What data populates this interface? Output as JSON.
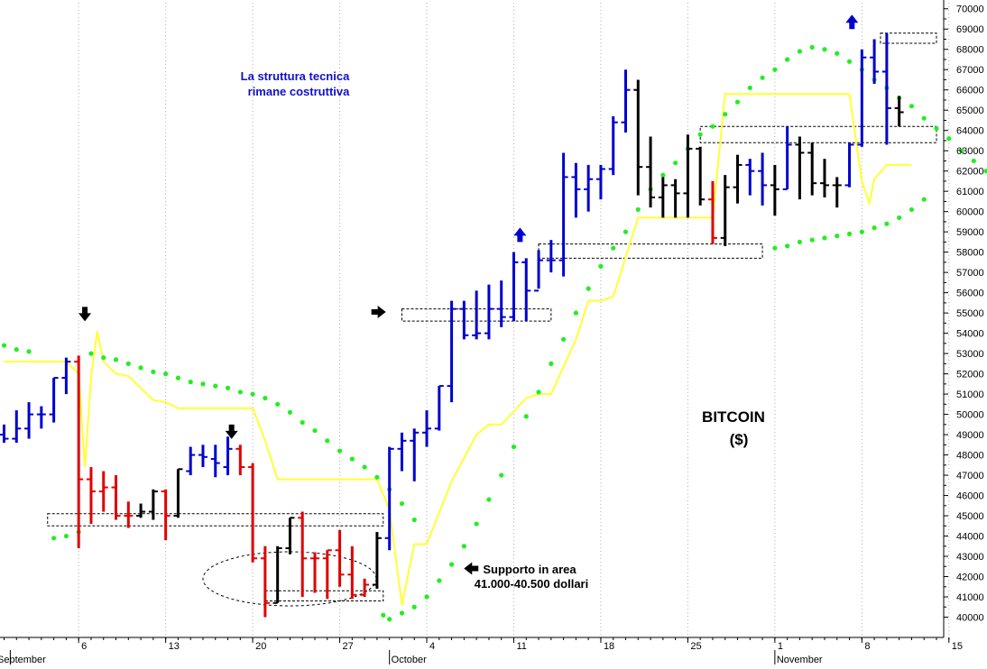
{
  "chart_data": {
    "type": "ohlc",
    "title_line1": "BITCOIN",
    "title_line2": "($)",
    "annotations": {
      "structure": [
        "La struttura tecnica",
        "rimane costruttiva"
      ],
      "support": [
        "Supporto in area",
        "41.000-40.500 dollari"
      ]
    },
    "ylim": [
      39000,
      70300
    ],
    "y_ticks": [
      40000,
      41000,
      42000,
      43000,
      44000,
      45000,
      46000,
      47000,
      48000,
      49000,
      50000,
      51000,
      52000,
      53000,
      54000,
      55000,
      56000,
      57000,
      58000,
      59000,
      60000,
      61000,
      62000,
      63000,
      64000,
      65000,
      66000,
      67000,
      68000,
      69000,
      70000
    ],
    "y_tick_labels": [
      "40000",
      "41000",
      "42000",
      "43000",
      "44000",
      "45000",
      "46000",
      "47000",
      "48000",
      "49000",
      "50000",
      "51000",
      "52000",
      "53000",
      "54000",
      "55000",
      "56000",
      "57000",
      "58000",
      "59000",
      "60000",
      "61000",
      "62000",
      "63000",
      "64000",
      "65000",
      "66000",
      "67000",
      "68000",
      "69000",
      "70000"
    ],
    "x_ticks": [
      {
        "label": "6",
        "day": 6
      },
      {
        "label": "13",
        "day": 13
      },
      {
        "label": "20",
        "day": 20
      },
      {
        "label": "27",
        "day": 27
      },
      {
        "label": "4",
        "day": 34
      },
      {
        "label": "11",
        "day": 41
      },
      {
        "label": "18",
        "day": 48
      },
      {
        "label": "25",
        "day": 55
      },
      {
        "label": "1",
        "day": 62
      },
      {
        "label": "8",
        "day": 69
      },
      {
        "label": "15",
        "day": 76
      }
    ],
    "month_labels": [
      {
        "label": "September",
        "day": 0.5
      },
      {
        "label": "October",
        "day": 31
      },
      {
        "label": "November",
        "day": 62
      }
    ],
    "colors": {
      "up": "#0000d0",
      "down": "#e00000",
      "neutral": "#000000",
      "stop_line": "#ffff33",
      "sar": "#22ee22"
    },
    "bars": [
      {
        "d": 0,
        "o": 49000,
        "h": 49500,
        "l": 48600,
        "c": 48800,
        "k": "up"
      },
      {
        "d": 1,
        "o": 48800,
        "h": 50200,
        "l": 48600,
        "c": 49300,
        "k": "up"
      },
      {
        "d": 2,
        "o": 49300,
        "h": 50600,
        "l": 48800,
        "c": 50000,
        "k": "up"
      },
      {
        "d": 3,
        "o": 50000,
        "h": 50400,
        "l": 49300,
        "c": 50000,
        "k": "up"
      },
      {
        "d": 4,
        "o": 50000,
        "h": 51800,
        "l": 49600,
        "c": 51800,
        "k": "up"
      },
      {
        "d": 5,
        "o": 51800,
        "h": 52800,
        "l": 51000,
        "c": 52600,
        "k": "up"
      },
      {
        "d": 6,
        "o": 52600,
        "h": 52900,
        "l": 43400,
        "c": 46800,
        "k": "down"
      },
      {
        "d": 7,
        "o": 46800,
        "h": 47400,
        "l": 44600,
        "c": 46200,
        "k": "down"
      },
      {
        "d": 8,
        "o": 46200,
        "h": 47200,
        "l": 45200,
        "c": 46400,
        "k": "down"
      },
      {
        "d": 9,
        "o": 46400,
        "h": 47000,
        "l": 44800,
        "c": 45000,
        "k": "down"
      },
      {
        "d": 10,
        "o": 45000,
        "h": 45700,
        "l": 44400,
        "c": 45000,
        "k": "down"
      },
      {
        "d": 11,
        "o": 45000,
        "h": 45600,
        "l": 44900,
        "c": 45200,
        "k": "neutral"
      },
      {
        "d": 12,
        "o": 45200,
        "h": 46300,
        "l": 44800,
        "c": 46200,
        "k": "neutral"
      },
      {
        "d": 13,
        "o": 46200,
        "h": 46300,
        "l": 43800,
        "c": 45000,
        "k": "down"
      },
      {
        "d": 14,
        "o": 45000,
        "h": 47300,
        "l": 44900,
        "c": 47300,
        "k": "neutral"
      },
      {
        "d": 15,
        "o": 47200,
        "h": 48400,
        "l": 47000,
        "c": 48000,
        "k": "up"
      },
      {
        "d": 16,
        "o": 48000,
        "h": 48500,
        "l": 47400,
        "c": 47900,
        "k": "up"
      },
      {
        "d": 17,
        "o": 47800,
        "h": 48500,
        "l": 46900,
        "c": 47600,
        "k": "up"
      },
      {
        "d": 18,
        "o": 47400,
        "h": 48900,
        "l": 47000,
        "c": 48300,
        "k": "up"
      },
      {
        "d": 19,
        "o": 48300,
        "h": 48500,
        "l": 47000,
        "c": 47400,
        "k": "down"
      },
      {
        "d": 20,
        "o": 47400,
        "h": 47600,
        "l": 42700,
        "c": 42900,
        "k": "down"
      },
      {
        "d": 21,
        "o": 42900,
        "h": 43500,
        "l": 40000,
        "c": 40700,
        "k": "down"
      },
      {
        "d": 22,
        "o": 40700,
        "h": 43500,
        "l": 40700,
        "c": 43400,
        "k": "neutral"
      },
      {
        "d": 23,
        "o": 43400,
        "h": 44900,
        "l": 43100,
        "c": 44900,
        "k": "neutral"
      },
      {
        "d": 24,
        "o": 44900,
        "h": 45200,
        "l": 41000,
        "c": 42900,
        "k": "down"
      },
      {
        "d": 25,
        "o": 42900,
        "h": 43200,
        "l": 41200,
        "c": 42900,
        "k": "down"
      },
      {
        "d": 26,
        "o": 42900,
        "h": 43300,
        "l": 40900,
        "c": 43300,
        "k": "down"
      },
      {
        "d": 27,
        "o": 43300,
        "h": 44300,
        "l": 41500,
        "c": 42100,
        "k": "down"
      },
      {
        "d": 28,
        "o": 42100,
        "h": 43500,
        "l": 40900,
        "c": 41100,
        "k": "down"
      },
      {
        "d": 29,
        "o": 41100,
        "h": 41900,
        "l": 41000,
        "c": 41600,
        "k": "down"
      },
      {
        "d": 30,
        "o": 41600,
        "h": 44200,
        "l": 41400,
        "c": 43900,
        "k": "neutral"
      },
      {
        "d": 31,
        "o": 43900,
        "h": 48400,
        "l": 43300,
        "c": 48300,
        "k": "up"
      },
      {
        "d": 32,
        "o": 48300,
        "h": 49100,
        "l": 47200,
        "c": 48700,
        "k": "up"
      },
      {
        "d": 33,
        "o": 48700,
        "h": 49300,
        "l": 46700,
        "c": 49100,
        "k": "up"
      },
      {
        "d": 34,
        "o": 49100,
        "h": 50200,
        "l": 48400,
        "c": 49300,
        "k": "up"
      },
      {
        "d": 35,
        "o": 49300,
        "h": 51400,
        "l": 49200,
        "c": 51400,
        "k": "up"
      },
      {
        "d": 36,
        "o": 51400,
        "h": 55600,
        "l": 50600,
        "c": 55200,
        "k": "up"
      },
      {
        "d": 37,
        "o": 55200,
        "h": 55600,
        "l": 53700,
        "c": 53900,
        "k": "up"
      },
      {
        "d": 38,
        "o": 53900,
        "h": 56100,
        "l": 53700,
        "c": 54000,
        "k": "up"
      },
      {
        "d": 39,
        "o": 54000,
        "h": 56400,
        "l": 53700,
        "c": 55200,
        "k": "up"
      },
      {
        "d": 40,
        "o": 55200,
        "h": 56600,
        "l": 54300,
        "c": 54800,
        "k": "up"
      },
      {
        "d": 41,
        "o": 54800,
        "h": 58000,
        "l": 54600,
        "c": 57500,
        "k": "up"
      },
      {
        "d": 42,
        "o": 57500,
        "h": 57700,
        "l": 54600,
        "c": 56100,
        "k": "up"
      },
      {
        "d": 43,
        "o": 56100,
        "h": 58100,
        "l": 56200,
        "c": 57600,
        "k": "up"
      },
      {
        "d": 44,
        "o": 57600,
        "h": 58600,
        "l": 57000,
        "c": 57600,
        "k": "up"
      },
      {
        "d": 45,
        "o": 57600,
        "h": 62900,
        "l": 56800,
        "c": 61700,
        "k": "up"
      },
      {
        "d": 46,
        "o": 61700,
        "h": 62400,
        "l": 59700,
        "c": 61100,
        "k": "up"
      },
      {
        "d": 47,
        "o": 61100,
        "h": 62300,
        "l": 60000,
        "c": 61600,
        "k": "up"
      },
      {
        "d": 48,
        "o": 61600,
        "h": 62300,
        "l": 60600,
        "c": 62100,
        "k": "up"
      },
      {
        "d": 49,
        "o": 62100,
        "h": 64700,
        "l": 61800,
        "c": 64400,
        "k": "up"
      },
      {
        "d": 50,
        "o": 64400,
        "h": 67000,
        "l": 63900,
        "c": 66000,
        "k": "up"
      },
      {
        "d": 51,
        "o": 66000,
        "h": 66500,
        "l": 60800,
        "c": 62200,
        "k": "neutral"
      },
      {
        "d": 52,
        "o": 62200,
        "h": 63700,
        "l": 60200,
        "c": 60700,
        "k": "neutral"
      },
      {
        "d": 53,
        "o": 60700,
        "h": 61700,
        "l": 59700,
        "c": 61300,
        "k": "neutral"
      },
      {
        "d": 54,
        "o": 61300,
        "h": 61600,
        "l": 59700,
        "c": 60900,
        "k": "neutral"
      },
      {
        "d": 55,
        "o": 60900,
        "h": 63800,
        "l": 59700,
        "c": 63100,
        "k": "neutral"
      },
      {
        "d": 56,
        "o": 63100,
        "h": 63200,
        "l": 60300,
        "c": 60600,
        "k": "neutral"
      },
      {
        "d": 57,
        "o": 60600,
        "h": 61500,
        "l": 58400,
        "c": 58700,
        "k": "down"
      },
      {
        "d": 58,
        "o": 58700,
        "h": 61800,
        "l": 58300,
        "c": 61200,
        "k": "neutral"
      },
      {
        "d": 59,
        "o": 61200,
        "h": 62800,
        "l": 60400,
        "c": 62300,
        "k": "neutral"
      },
      {
        "d": 60,
        "o": 62300,
        "h": 62600,
        "l": 60800,
        "c": 62000,
        "k": "up"
      },
      {
        "d": 61,
        "o": 62000,
        "h": 62900,
        "l": 60300,
        "c": 61300,
        "k": "up"
      },
      {
        "d": 62,
        "o": 61300,
        "h": 62300,
        "l": 59800,
        "c": 61100,
        "k": "neutral"
      },
      {
        "d": 63,
        "o": 61100,
        "h": 64200,
        "l": 61100,
        "c": 63300,
        "k": "up"
      },
      {
        "d": 64,
        "o": 63300,
        "h": 63700,
        "l": 60600,
        "c": 62900,
        "k": "neutral"
      },
      {
        "d": 65,
        "o": 62900,
        "h": 63400,
        "l": 60800,
        "c": 61400,
        "k": "neutral"
      },
      {
        "d": 66,
        "o": 61400,
        "h": 62600,
        "l": 60700,
        "c": 61300,
        "k": "neutral"
      },
      {
        "d": 67,
        "o": 61300,
        "h": 61700,
        "l": 60200,
        "c": 61300,
        "k": "neutral"
      },
      {
        "d": 68,
        "o": 61300,
        "h": 63400,
        "l": 61200,
        "c": 63300,
        "k": "up"
      },
      {
        "d": 69,
        "o": 63300,
        "h": 68000,
        "l": 63200,
        "c": 67600,
        "k": "up"
      },
      {
        "d": 70,
        "o": 67600,
        "h": 68500,
        "l": 66300,
        "c": 66900,
        "k": "up"
      },
      {
        "d": 71,
        "o": 66900,
        "h": 68800,
        "l": 63300,
        "c": 65100,
        "k": "up"
      },
      {
        "d": 72,
        "o": 65100,
        "h": 65700,
        "l": 64200,
        "c": 64900,
        "k": "neutral"
      }
    ],
    "stop_line": [
      [
        0,
        52600
      ],
      [
        5,
        52600
      ],
      [
        6,
        52000
      ],
      [
        6.5,
        47400
      ],
      [
        7,
        51900
      ],
      [
        7.5,
        54100
      ],
      [
        8,
        52600
      ],
      [
        9,
        52000
      ],
      [
        10,
        51900
      ],
      [
        12,
        50700
      ],
      [
        13,
        50600
      ],
      [
        14,
        50300
      ],
      [
        20,
        50300
      ],
      [
        21,
        48700
      ],
      [
        22,
        46800
      ],
      [
        30,
        46800
      ],
      [
        31,
        45300
      ],
      [
        32,
        40600
      ],
      [
        33,
        43600
      ],
      [
        34,
        43600
      ],
      [
        36,
        46700
      ],
      [
        38,
        49000
      ],
      [
        39,
        49500
      ],
      [
        40,
        49500
      ],
      [
        42,
        50800
      ],
      [
        43,
        51000
      ],
      [
        44,
        51000
      ],
      [
        46,
        53700
      ],
      [
        47,
        55600
      ],
      [
        48,
        55600
      ],
      [
        49,
        55800
      ],
      [
        51,
        59700
      ],
      [
        56,
        59700
      ],
      [
        57,
        59700
      ],
      [
        58,
        65800
      ],
      [
        68,
        65800
      ],
      [
        69,
        61500
      ],
      [
        69.6,
        60400
      ],
      [
        70,
        61600
      ],
      [
        71,
        62300
      ],
      [
        73,
        62300
      ]
    ],
    "sar": [
      [
        0,
        53400
      ],
      [
        1,
        53200
      ],
      [
        2,
        53100
      ],
      [
        7,
        53000
      ],
      [
        8,
        52800
      ],
      [
        9,
        52700
      ],
      [
        10,
        52500
      ],
      [
        11,
        52300
      ],
      [
        12,
        52100
      ],
      [
        13,
        52000
      ],
      [
        14,
        51800
      ],
      [
        15,
        51600
      ],
      [
        16,
        51500
      ],
      [
        17,
        51400
      ],
      [
        18,
        51300
      ],
      [
        19,
        51100
      ],
      [
        20,
        51000
      ],
      [
        21,
        50800
      ],
      [
        22,
        50500
      ],
      [
        23,
        50100
      ],
      [
        24,
        49600
      ],
      [
        25,
        49200
      ],
      [
        26,
        48700
      ],
      [
        27,
        48200
      ],
      [
        28,
        47800
      ],
      [
        29,
        47400
      ],
      [
        30,
        46900
      ],
      [
        31,
        46300
      ],
      [
        32,
        45600
      ],
      [
        33,
        44800
      ],
      [
        6,
        44200
      ],
      [
        5,
        44000
      ],
      [
        4,
        43900
      ],
      [
        30.5,
        40100
      ],
      [
        31,
        39900
      ],
      [
        32,
        40200
      ],
      [
        33,
        40500
      ],
      [
        34,
        41000
      ],
      [
        35,
        41800
      ],
      [
        36,
        42600
      ],
      [
        37,
        43500
      ],
      [
        38,
        44600
      ],
      [
        39,
        45800
      ],
      [
        40,
        47000
      ],
      [
        41,
        48400
      ],
      [
        42,
        49900
      ],
      [
        43,
        51100
      ],
      [
        44,
        52500
      ],
      [
        45,
        53700
      ],
      [
        46,
        55000
      ],
      [
        47,
        56200
      ],
      [
        48,
        57300
      ],
      [
        49,
        58200
      ],
      [
        50,
        59000
      ],
      [
        51,
        60100
      ],
      [
        52,
        61100
      ],
      [
        53,
        61800
      ],
      [
        54,
        62400
      ],
      [
        55,
        63100
      ],
      [
        56,
        63800
      ],
      [
        57,
        64200
      ],
      [
        58,
        64800
      ],
      [
        59,
        65400
      ],
      [
        60,
        66100
      ],
      [
        61,
        66600
      ],
      [
        62,
        67000
      ],
      [
        63,
        67500
      ],
      [
        64,
        67900
      ],
      [
        65,
        68100
      ],
      [
        66,
        68000
      ],
      [
        67,
        67800
      ],
      [
        68,
        67400
      ],
      [
        69,
        67000
      ],
      [
        70,
        66500
      ],
      [
        71,
        66100
      ],
      [
        72,
        65600
      ],
      [
        73,
        65200
      ],
      [
        74,
        64600
      ],
      [
        75,
        64100
      ],
      [
        76,
        63600
      ],
      [
        77,
        63000
      ],
      [
        78,
        62500
      ],
      [
        79,
        62000
      ],
      [
        80,
        61500
      ],
      [
        81,
        61000
      ],
      [
        82,
        60500
      ],
      [
        62,
        58200
      ],
      [
        63,
        58300
      ],
      [
        64,
        58500
      ],
      [
        65,
        58600
      ],
      [
        66,
        58700
      ],
      [
        67,
        58800
      ],
      [
        68,
        58900
      ],
      [
        69,
        59000
      ],
      [
        70,
        59200
      ],
      [
        71,
        59400
      ],
      [
        72,
        59700
      ],
      [
        73,
        60100
      ],
      [
        74,
        60600
      ]
    ],
    "boxes": [
      {
        "d0": 3.5,
        "d1": 30.5,
        "y0": 44500,
        "y1": 45100
      },
      {
        "d0": 21,
        "d1": 30.5,
        "y0": 40800,
        "y1": 41300
      },
      {
        "d0": 32,
        "d1": 44,
        "y0": 54600,
        "y1": 55200
      },
      {
        "d0": 43,
        "d1": 61,
        "y0": 57700,
        "y1": 58400
      },
      {
        "d0": 56,
        "d1": 75,
        "y0": 63400,
        "y1": 64200
      },
      {
        "d0": 70.5,
        "d1": 75,
        "y0": 68300,
        "y1": 68800
      }
    ],
    "arrows": [
      {
        "dir": "down",
        "d": 6.5,
        "y": 54900,
        "color": "#000000"
      },
      {
        "dir": "down",
        "d": 18.3,
        "y": 49100,
        "color": "#000000"
      },
      {
        "dir": "right",
        "d": 30.2,
        "y": 55050,
        "color": "#000000"
      },
      {
        "dir": "left",
        "d": 37.5,
        "y": 42400,
        "color": "#000000"
      },
      {
        "dir": "up",
        "d": 41.5,
        "y": 58900,
        "color": "#0000cc"
      },
      {
        "dir": "up",
        "d": 68.2,
        "y": 69400,
        "color": "#0000cc"
      }
    ]
  }
}
